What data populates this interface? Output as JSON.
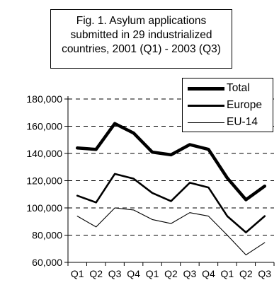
{
  "chart_data": {
    "type": "line",
    "title_lines": [
      "Fig. 1.  Asylum applications",
      "submitted in 29 industrialized",
      "countries, 2001 (Q1) - 2003 (Q3)"
    ],
    "categories": [
      "Q1",
      "Q2",
      "Q3",
      "Q4",
      "Q1",
      "Q2",
      "Q3",
      "Q4",
      "Q1",
      "Q2",
      "Q3"
    ],
    "ylim": [
      60000,
      180000
    ],
    "yticks": [
      60000,
      80000,
      100000,
      120000,
      140000,
      160000,
      180000
    ],
    "ytick_labels": [
      "60,000",
      "80,000",
      "100,000",
      "120,000",
      "140,000",
      "160,000",
      "180,000"
    ],
    "grid": "horizontal dashed",
    "legend_position": "top-right",
    "series": [
      {
        "name": "Total",
        "values": [
          144000,
          143000,
          162000,
          155000,
          141000,
          139000,
          146500,
          143000,
          122000,
          106000,
          116000
        ],
        "line_style": "very thick",
        "color": "#000000"
      },
      {
        "name": "Europe",
        "values": [
          109000,
          104000,
          125000,
          121500,
          111000,
          105000,
          118500,
          115000,
          94000,
          82000,
          94000
        ],
        "line_style": "thick",
        "color": "#000000"
      },
      {
        "name": "EU-14",
        "values": [
          94000,
          86000,
          100000,
          98500,
          91500,
          88500,
          96500,
          94000,
          80000,
          65500,
          74500
        ],
        "line_style": "thin",
        "color": "#000000"
      }
    ]
  }
}
